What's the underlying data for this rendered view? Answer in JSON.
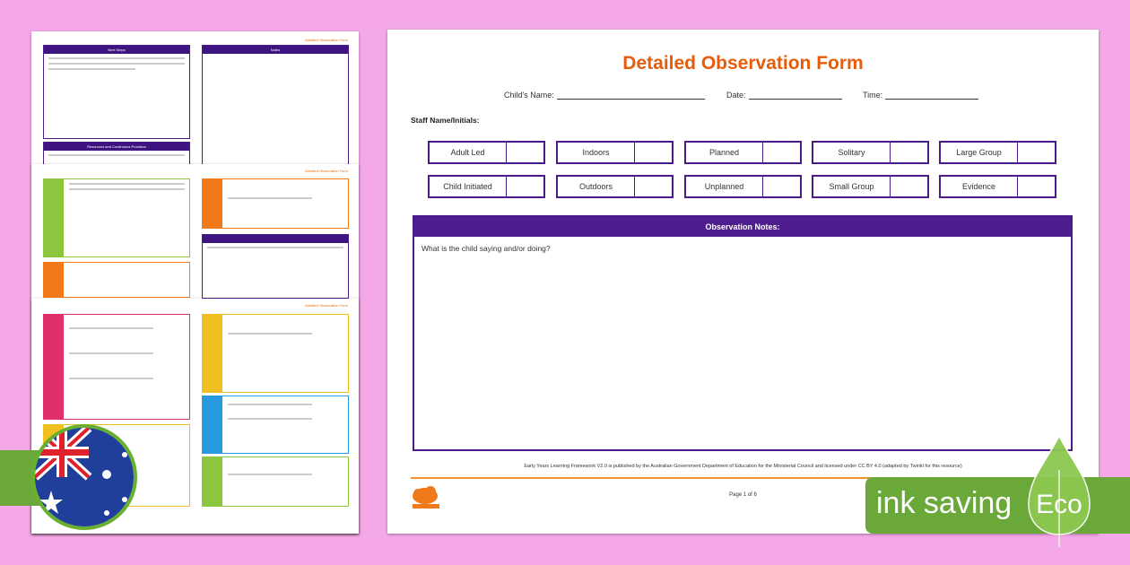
{
  "thumbnails": {
    "header": "Detailed Observation Form",
    "next_steps": "Next Steps",
    "notes": "Notes",
    "resources": "Resources and Continuous Provision"
  },
  "form": {
    "title": "Detailed Observation Form",
    "childs_name_label": "Child's Name:",
    "date_label": "Date:",
    "time_label": "Time:",
    "staff_label": "Staff Name/Initials:",
    "options_row1": [
      "Adult Led",
      "Indoors",
      "Planned",
      "Solitary",
      "Large Group"
    ],
    "options_row2": [
      "Child Initiated",
      "Outdoors",
      "Unplanned",
      "Small Group",
      "Evidence"
    ],
    "notes_header": "Observation Notes:",
    "notes_prompt": "What is the child saying and/or doing?",
    "credit": "Early Years Learning Framework V2.0 is published by the Australian Government Department of Education for the Ministerial Council and licensed under CC BY 4.0 (adapted by Twinkl for this resource)",
    "page": "Page 1 of 6",
    "logo": "twinkl"
  },
  "badge": {
    "text": "ink saving",
    "eco": "Eco"
  },
  "colors": {
    "background": "#f5a8e8",
    "purple": "#4e1d8e",
    "orange": "#e65c0a",
    "eco_green": "#6aa83a"
  },
  "icons": {
    "flag": "australia-flag-icon",
    "leaf": "leaf-icon"
  }
}
